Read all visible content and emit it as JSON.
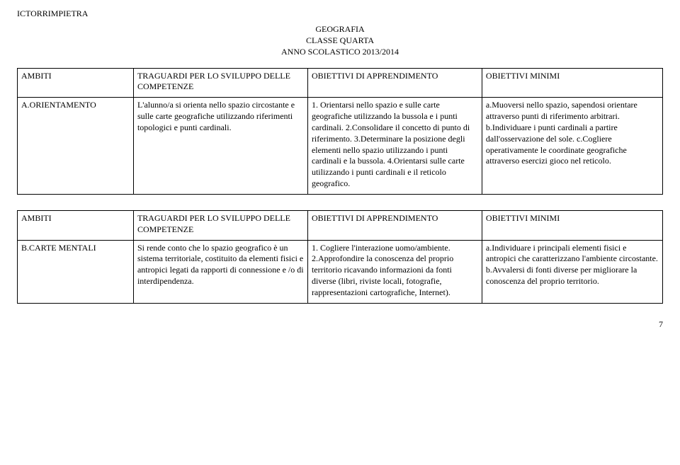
{
  "header": {
    "inst": "ICTORRIMPIETRA",
    "title1": "GEOGRAFIA",
    "title2": "CLASSE QUARTA",
    "title3": "ANNO SCOLASTICO 2013/2014"
  },
  "table1": {
    "r1c1": "AMBITI",
    "r1c2": "TRAGUARDI PER LO SVILUPPO DELLE COMPETENZE",
    "r1c3": "OBIETTIVI DI APPRENDIMENTO",
    "r1c4": "OBIETTIVI MINIMI",
    "r2c1": "A.ORIENTAMENTO",
    "r2c2": "L'alunno/a si orienta nello spazio circostante e sulle carte geografiche utilizzando riferimenti topologici e punti cardinali.",
    "r2c3": "1. Orientarsi nello spazio e sulle carte geografiche utilizzando la bussola e i punti cardinali. 2.Consolidare il concetto di punto di riferimento. 3.Determinare la posizione degli elementi nello spazio utilizzando i punti cardinali e la bussola. 4.Orientarsi sulle carte utilizzando i punti cardinali e il reticolo geografico.",
    "r2c4": "a.Muoversi nello spazio, sapendosi orientare attraverso punti di riferimento arbitrari. b.Individuare i punti cardinali a partire dall'osservazione del sole. c.Cogliere operativamente le coordinate geografiche attraverso esercizi gioco nel reticolo."
  },
  "table2": {
    "r1c1": "AMBITI",
    "r1c2": "TRAGUARDI PER LO SVILUPPO DELLE COMPETENZE",
    "r1c3": "OBIETTIVI DI APPRENDIMENTO",
    "r1c4": "OBIETTIVI MINIMI",
    "r2c1": "B.CARTE MENTALI",
    "r2c2": "Si rende conto che lo spazio geografico è un sistema territoriale, costituito da elementi fisici e antropici legati da rapporti di connessione e /o di interdipendenza.",
    "r2c3": "1. Cogliere l'interazione uomo/ambiente. 2.Approfondire la conoscenza del proprio territorio ricavando informazioni da fonti diverse (libri, riviste locali, fotografie, rappresentazioni cartografiche, Internet).",
    "r2c4": "a.Individuare i principali elementi fisici e antropici che caratterizzano l'ambiente circostante. b.Avvalersi di fonti diverse per migliorare la conoscenza del proprio territorio."
  },
  "page": "7"
}
